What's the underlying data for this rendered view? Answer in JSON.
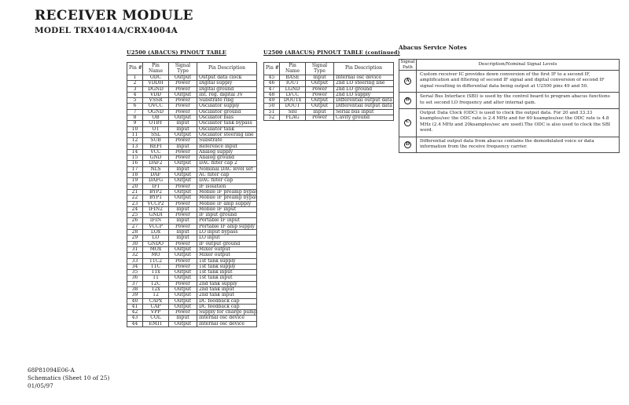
{
  "page": {
    "title": "RECEIVER MODULE",
    "subtitle": "MODEL TRX4014A/CRX4004A"
  },
  "pinout_table": {
    "title": "U2500 (ABACUS) PINOUT TABLE",
    "columns": [
      "Pin #",
      "Pin Name",
      "Signal Type",
      "Pin Description"
    ],
    "rows": [
      [
        "1",
        "ODC",
        "Output",
        "Output data clock"
      ],
      [
        "2",
        "VDDH",
        "Power",
        "Digital supply"
      ],
      [
        "3",
        "DGND",
        "Power",
        "Digital ground"
      ],
      [
        "4",
        "VDD",
        "Output",
        "Int. reg. digital 3V"
      ],
      [
        "5",
        "VSSR",
        "Power",
        "Substrate ring"
      ],
      [
        "6",
        "OVCC",
        "Power",
        "Oscillator supply"
      ],
      [
        "7",
        "OGND",
        "Power",
        "Oscillator ground"
      ],
      [
        "8",
        "OB",
        "Output",
        "Oscillator bias"
      ],
      [
        "9",
        "OTBY",
        "Input",
        "Oscillator tank bypass"
      ],
      [
        "10",
        "OT",
        "Input",
        "Oscillator tank"
      ],
      [
        "11",
        "SSL",
        "Output",
        "Oscillator steering line"
      ],
      [
        "12",
        "SUB",
        "Power",
        "Substrate"
      ],
      [
        "13",
        "REFI",
        "Input",
        "Reference input"
      ],
      [
        "14",
        "VCC",
        "Power",
        "Analog supply"
      ],
      [
        "15",
        "GND",
        "Power",
        "Analog ground"
      ],
      [
        "16",
        "DAF2",
        "Output",
        "DAC filter cap 2"
      ],
      [
        "17",
        "NLS",
        "Input",
        "Nominal DAC level set"
      ],
      [
        "18",
        "DAF",
        "Output",
        "AC filter cap"
      ],
      [
        "19",
        "DAFG",
        "Output",
        "DAC filter cap"
      ],
      [
        "20",
        "IFI",
        "Power",
        "IF isolation"
      ],
      [
        "21",
        "BYP2",
        "Output",
        "Mobile IF preamp bypass"
      ],
      [
        "22",
        "BYP1",
        "Output",
        "Mobile IF preamp bypass"
      ],
      [
        "23",
        "VCCP2",
        "Power",
        "Mobile IF amp supply"
      ],
      [
        "24",
        "IFIN2",
        "Input",
        "Mobile IF input"
      ],
      [
        "25",
        "GNDI",
        "Power",
        "IF input ground"
      ],
      [
        "26",
        "IFIN",
        "Input",
        "Portable IF input"
      ],
      [
        "27",
        "VCCP",
        "Power",
        "Portable IF amp supply"
      ],
      [
        "28",
        "LOx",
        "Input",
        "LO input bypass"
      ],
      [
        "29",
        "LO",
        "Input",
        "LO input"
      ],
      [
        "30",
        "GNDO",
        "Power",
        "IF output ground"
      ],
      [
        "31",
        "MOx",
        "Output",
        "Mixer output"
      ],
      [
        "32",
        "MO",
        "Output",
        "Mixer output"
      ],
      [
        "33",
        "T1C2",
        "Power",
        "1st tank supply"
      ],
      [
        "34",
        "T1C",
        "Power",
        "1st tank supply"
      ],
      [
        "35",
        "T1x",
        "Output",
        "1st tank input"
      ],
      [
        "36",
        "T1",
        "Output",
        "1st tank input"
      ],
      [
        "37",
        "T2C",
        "Power",
        "2nd tank supply"
      ],
      [
        "38",
        "T2x",
        "Output",
        "2nd tank input"
      ],
      [
        "39",
        "T2",
        "Output",
        "2nd tank input"
      ],
      [
        "40",
        "CAPx",
        "Output",
        "DC feedback cap"
      ],
      [
        "41",
        "CAP",
        "Output",
        "DC feedback cap"
      ],
      [
        "42",
        "VPP",
        "Power",
        "Supply for charge pump"
      ],
      [
        "43",
        "COL",
        "Input",
        "Internal osc device"
      ],
      [
        "44",
        "EMIT",
        "Output",
        "Internal osc device"
      ]
    ]
  },
  "pinout_table_continued": {
    "title": "U2500 (ABACUS) PINOUT TABLE (continued)",
    "columns": [
      "Pin #",
      "Pin Name",
      "Signal Type",
      "Pin Description"
    ],
    "rows": [
      [
        "45",
        "BASE",
        "Input",
        "Internal osc device"
      ],
      [
        "46",
        "IOUT",
        "Output",
        "2nd LO steering line"
      ],
      [
        "47",
        "LGND",
        "Power",
        "2nd LO ground"
      ],
      [
        "48",
        "LVCC",
        "Power",
        "2nd LO supply"
      ],
      [
        "49",
        "DOUTx",
        "Output",
        "Differential output data"
      ],
      [
        "50",
        "DOUT",
        "Output",
        "Differential output data"
      ],
      [
        "51",
        "SBI",
        "Input",
        "Serial bus input"
      ],
      [
        "52",
        "FLAG",
        "Power",
        "Cavity ground"
      ]
    ]
  },
  "service_notes": {
    "title": "Abacus Service Notes",
    "columns": [
      "Signal Path",
      "Description/Nominal Signal Levels"
    ],
    "rows": [
      {
        "path": "A",
        "description": "Custom receiver IC provides down conversion of the first IF to a second IF, amplification and filtering of second IF signal and digital conversion of second IF signal resulting in differential data being output at U2500 pins 49 and 50."
      },
      {
        "path": "B",
        "description": "Serial Bus Interface (SBI) is used by the control board to program abacus functions to set second LO frequency and alter internal gain."
      },
      {
        "path": "C",
        "description": "Output Data Clock (ODC) is used to clock the output data. For 20 and 33.33 ksamples/sec the ODC rate is 2.4 MHz and for 60 ksamples/sec the ODC rate is 4.8 MHz (2.4 MHz and 20ksamples/sec are used).The ODC is also used to clock the SBI word."
      },
      {
        "path": "D",
        "description": "Differential output data from abacus contains the demodulated voice or data information from the receive frequency carrier."
      }
    ]
  },
  "footer": {
    "part_number": "68P81094E06-A",
    "sheet_info": "Schematics (Sheet 10 of 25)",
    "date": "01/05/97"
  }
}
